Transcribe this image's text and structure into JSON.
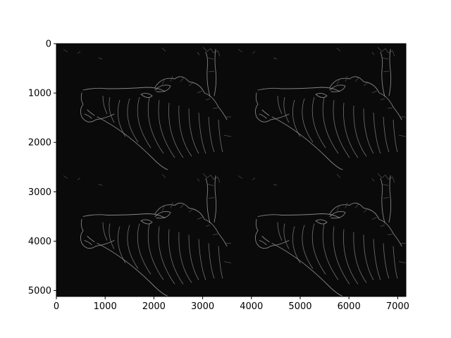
{
  "figure": {
    "xaxis": {
      "range": [
        0,
        7168
      ],
      "ticks": [
        0,
        1000,
        2000,
        3000,
        4000,
        5000,
        6000,
        7000
      ]
    },
    "yaxis": {
      "range": [
        0,
        5120
      ],
      "inverted": true,
      "ticks": [
        0,
        1000,
        2000,
        3000,
        4000,
        5000
      ]
    },
    "image": {
      "description_none": "",
      "grid_layout": {
        "rows": 2,
        "cols": 2
      },
      "tile_size": [
        3584,
        2560
      ],
      "background": "#0a0a0a",
      "edge_color": "#9a9a9a"
    }
  }
}
